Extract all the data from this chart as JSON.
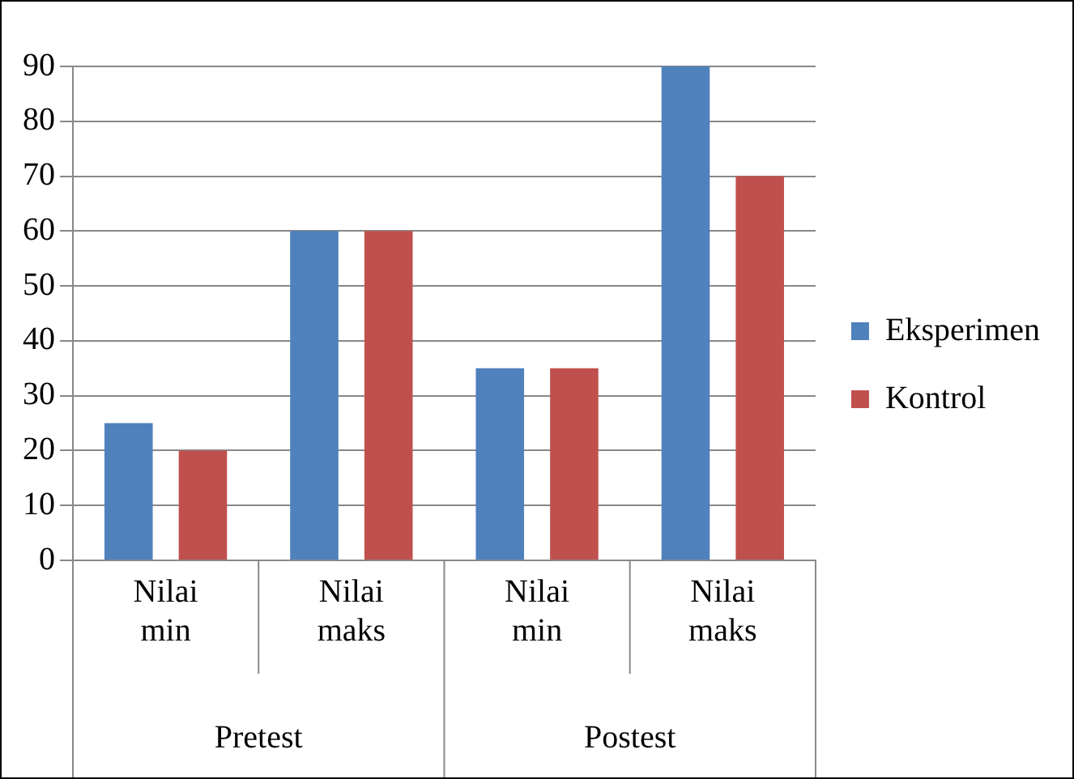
{
  "chart_data": {
    "type": "bar",
    "categories": [
      "Nilai min",
      "Nilai maks",
      "Nilai min",
      "Nilai maks"
    ],
    "series": [
      {
        "name": "Eksperimen",
        "color": "#4f81bd",
        "values": [
          25,
          60,
          35,
          90
        ]
      },
      {
        "name": "Kontrol",
        "color": "#c0504d",
        "values": [
          20,
          60,
          35,
          70
        ]
      }
    ],
    "ylim": [
      0,
      90
    ],
    "yticks": [
      0,
      10,
      20,
      30,
      40,
      50,
      60,
      70,
      80,
      90
    ],
    "grid": "y",
    "legend": "right",
    "annotations": [
      "Pretest",
      "Postest"
    ]
  }
}
